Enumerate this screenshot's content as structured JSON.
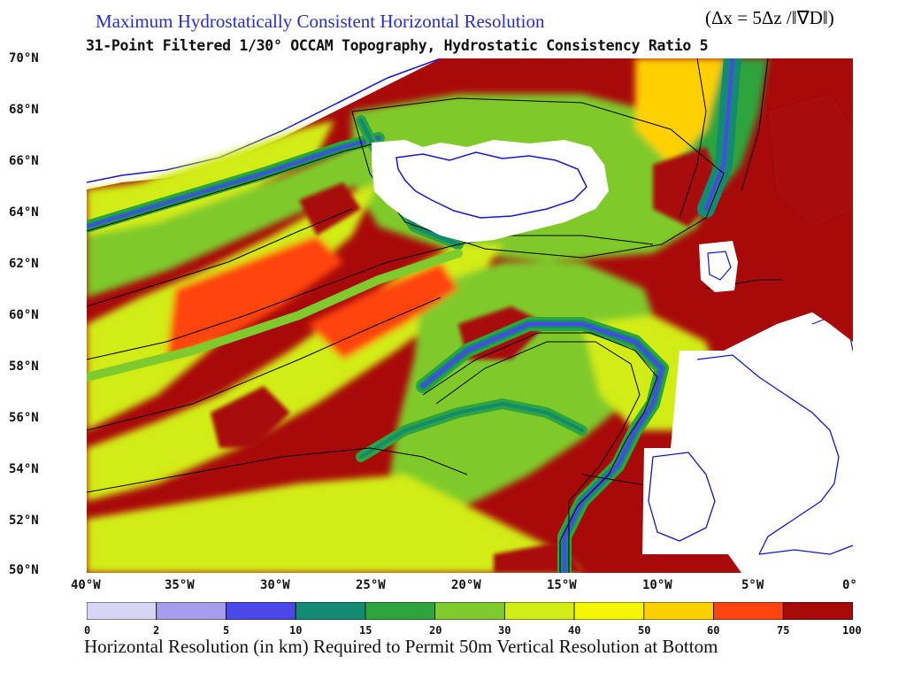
{
  "title": {
    "line1": "Maximum Hydrostatically Consistent Horizontal Resolution",
    "formula": "(Δx = 5Δz /‖∇D‖)",
    "line2": "31-Point Filtered 1/30° OCCAM Topography, Hydrostatic Consistency Ratio 5"
  },
  "map": {
    "lat_labels": [
      "70°N",
      "68°N",
      "66°N",
      "64°N",
      "62°N",
      "60°N",
      "58°N",
      "56°N",
      "54°N",
      "52°N",
      "50°N"
    ],
    "lon_labels": [
      "40°W",
      "35°W",
      "30°W",
      "25°W",
      "20°W",
      "15°W",
      "10°W",
      "5°W",
      "0°"
    ],
    "lat_range": [
      50,
      70
    ],
    "lon_range": [
      -40,
      0
    ],
    "land_color": "#ffffff",
    "coastline_color": "#1515d0",
    "contour_color": "#000000"
  },
  "colorbar": {
    "ticks": [
      "0",
      "2",
      "5",
      "10",
      "15",
      "20",
      "30",
      "40",
      "50",
      "60",
      "75",
      "100"
    ],
    "colors": [
      "#d8d4f4",
      "#a89cec",
      "#4a48e8",
      "#138a72",
      "#2ea43c",
      "#7fca2c",
      "#d2ec18",
      "#f6f600",
      "#ffd000",
      "#ff4410",
      "#a80a0a"
    ],
    "caption": "Horizontal Resolution (in km) Required to Permit 50m Vertical Resolution at Bottom"
  }
}
